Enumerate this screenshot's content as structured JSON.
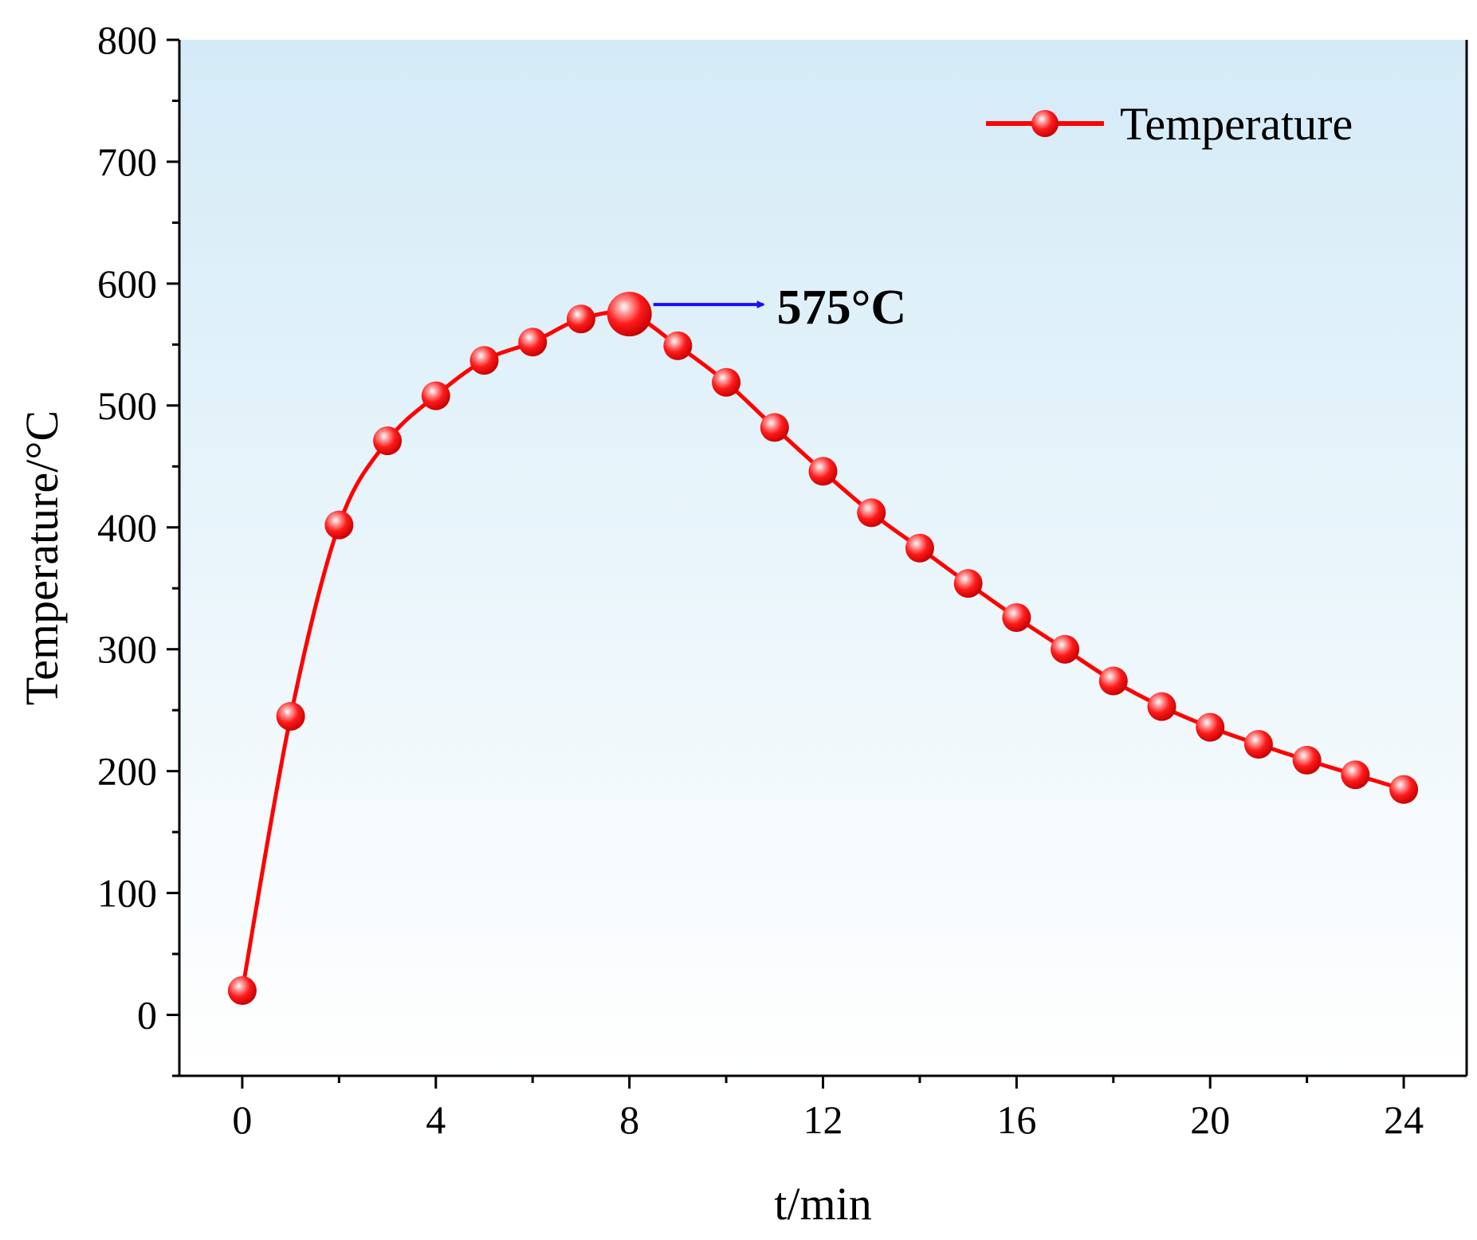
{
  "chart_data": {
    "type": "line",
    "title": "",
    "xlabel": "t/min",
    "ylabel": "Temperature/°C",
    "xlim": [
      -1.3,
      25.3
    ],
    "ylim": [
      -50,
      800
    ],
    "x_ticks": [
      0,
      4,
      8,
      12,
      16,
      20,
      24
    ],
    "x_tick_labels": [
      "0",
      "4",
      "8",
      "12",
      "16",
      "20",
      "24"
    ],
    "y_ticks": [
      0,
      100,
      200,
      300,
      400,
      500,
      600,
      700,
      800
    ],
    "y_tick_labels": [
      "0",
      "100",
      "200",
      "300",
      "400",
      "500",
      "600",
      "700",
      "800"
    ],
    "grid": false,
    "legend_position": "top-right",
    "series": [
      {
        "name": "Temperature",
        "color": "#ff0000",
        "x": [
          0,
          1,
          2,
          3,
          4,
          5,
          6,
          7,
          8,
          9,
          10,
          11,
          12,
          13,
          14,
          15,
          16,
          17,
          18,
          19,
          20,
          21,
          22,
          23,
          24
        ],
        "values": [
          20,
          245,
          402,
          471,
          508,
          537,
          552,
          571,
          575,
          549,
          519,
          482,
          446,
          412,
          383,
          354,
          326,
          300,
          274,
          253,
          236,
          222,
          209,
          197,
          185
        ]
      }
    ],
    "annotations": [
      {
        "text": "575°C",
        "x": 8,
        "y": 575,
        "color": "#1a0dff",
        "text_color": "#2b1a5e"
      }
    ],
    "background_gradient": [
      "#d4ebf7",
      "#ffffff"
    ]
  }
}
